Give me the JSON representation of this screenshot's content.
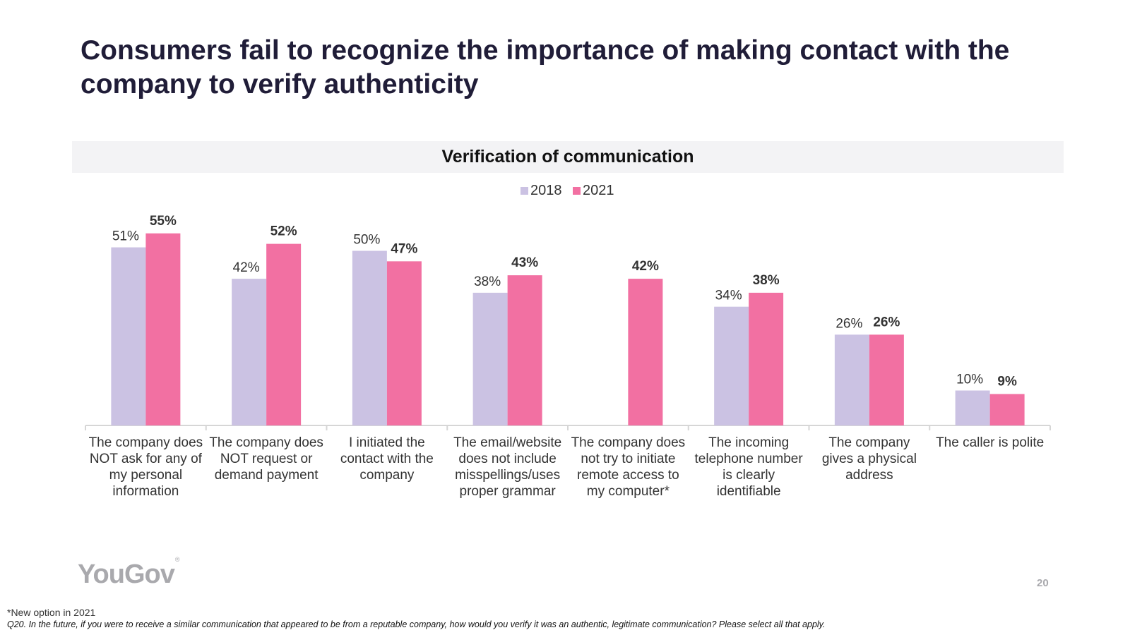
{
  "slide": {
    "title": "Consumers fail to recognize the importance of making contact with the company to verify authenticity",
    "page_number": "20",
    "logo_text": "YouGov",
    "logo_mark": "®"
  },
  "footnotes": {
    "note": "*New option in 2021",
    "question": "Q20. In the future, if you were to receive a similar communication that appeared to be from a reputable company, how would you verify it was an authentic, legitimate communication? Please select all that apply."
  },
  "colors": {
    "series_2018": "#cbc2e3",
    "series_2021": "#f270a2",
    "axis": "#d6d6d6",
    "label_text": "#333333"
  },
  "chart_data": {
    "type": "bar",
    "title": "Verification of communication",
    "xlabel": "",
    "ylabel": "",
    "ylim": [
      0,
      60
    ],
    "grid": false,
    "legend_position": "top-center",
    "value_suffix": "%",
    "categories": [
      [
        "The company does",
        "NOT ask for any of",
        "my personal",
        "information"
      ],
      [
        "The company does",
        "NOT request or",
        "demand payment"
      ],
      [
        "I initiated the",
        "contact with the",
        "company"
      ],
      [
        "The email/website",
        "does not include",
        "misspellings/uses",
        "proper grammar"
      ],
      [
        "The company does",
        "not try to initiate",
        "remote access to",
        "my computer*"
      ],
      [
        "The incoming",
        "telephone number",
        "is clearly",
        "identifiable"
      ],
      [
        "The company",
        "gives a physical",
        "address"
      ],
      [
        "The caller is polite"
      ]
    ],
    "series": [
      {
        "name": "2018",
        "values": [
          51,
          42,
          50,
          38,
          null,
          34,
          26,
          10
        ],
        "labels": [
          "51%",
          "42%",
          "50%",
          "38%",
          "",
          "34%",
          "26%",
          "10%"
        ]
      },
      {
        "name": "2021",
        "values": [
          55,
          52,
          47,
          43,
          42,
          38,
          26,
          9
        ],
        "labels": [
          "55%",
          "52%",
          "47%",
          "43%",
          "42%",
          "38%",
          "26%",
          "9%"
        ]
      }
    ]
  }
}
